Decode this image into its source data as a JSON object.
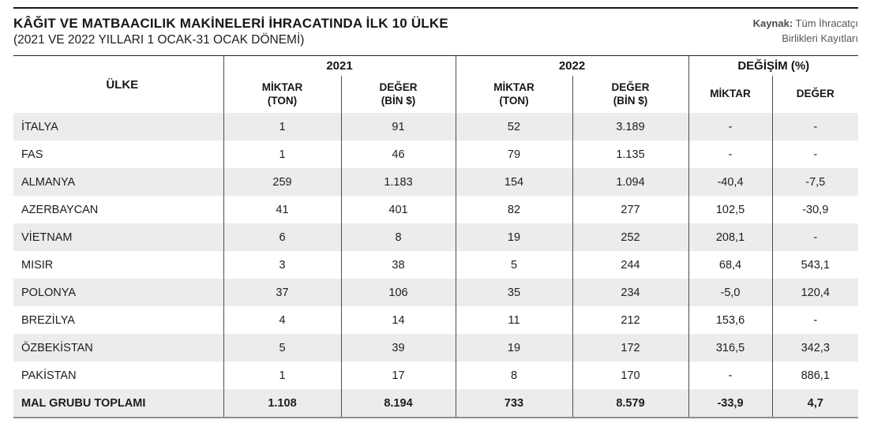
{
  "header": {
    "title": "KÂĞIT VE MATBAACILIK MAKİNELERİ İHRACATINDA İLK 10 ÜLKE",
    "subtitle": "(2021 VE 2022 YILLARI 1 OCAK-31 OCAK DÖNEMİ)",
    "source_label": "Kaynak:",
    "source_line1": " Tüm İhracatçı",
    "source_line2": "Birlikleri Kayıtları"
  },
  "table": {
    "country_header": "ÜLKE",
    "groups": {
      "g2021": "2021",
      "g2022": "2022",
      "gchange": "DEĞİŞİM (%)"
    },
    "sub": {
      "miktar": "MİKTAR",
      "ton": "(TON)",
      "deger": "DEĞER",
      "bin": "(BİN $)",
      "change_miktar": "MİKTAR",
      "change_deger": "DEĞER"
    }
  },
  "colors": {
    "stripe": "#ececec",
    "text": "#1d1d1b",
    "top_rule": "#1a1a1a",
    "cell_border": "#4c4c4c",
    "bottom_rule": "#8f8f8f",
    "source_text": "#55565a"
  },
  "chart_data": {
    "type": "table",
    "title": "KÂĞIT VE MATBAACILIK MAKİNELERİ İHRACATINDA İLK 10 ÜLKE",
    "subtitle": "(2021 VE 2022 YILLARI 1 OCAK-31 OCAK DÖNEMİ)",
    "source": "Kaynak: Tüm İhracatçı Birlikleri Kayıtları",
    "columns": [
      "ÜLKE",
      "2021 MİKTAR (TON)",
      "2021 DEĞER (BİN $)",
      "2022 MİKTAR (TON)",
      "2022 DEĞER (BİN $)",
      "DEĞİŞİM (%) MİKTAR",
      "DEĞİŞİM (%) DEĞER"
    ],
    "rows": [
      [
        "İTALYA",
        "1",
        "91",
        "52",
        "3.189",
        "-",
        "-"
      ],
      [
        "FAS",
        "1",
        "46",
        "79",
        "1.135",
        "-",
        "-"
      ],
      [
        "ALMANYA",
        "259",
        "1.183",
        "154",
        "1.094",
        "-40,4",
        "-7,5"
      ],
      [
        "AZERBAYCAN",
        "41",
        "401",
        "82",
        "277",
        "102,5",
        "-30,9"
      ],
      [
        "VİETNAM",
        "6",
        "8",
        "19",
        "252",
        "208,1",
        "-"
      ],
      [
        "MISIR",
        "3",
        "38",
        "5",
        "244",
        "68,4",
        "543,1"
      ],
      [
        "POLONYA",
        "37",
        "106",
        "35",
        "234",
        "-5,0",
        "120,4"
      ],
      [
        "BREZİLYA",
        "4",
        "14",
        "11",
        "212",
        "153,6",
        "-"
      ],
      [
        "ÖZBEKİSTAN",
        "5",
        "39",
        "19",
        "172",
        "316,5",
        "342,3"
      ],
      [
        "PAKİSTAN",
        "1",
        "17",
        "8",
        "170",
        "-",
        "886,1"
      ],
      [
        "MAL GRUBU TOPLAMI",
        "1.108",
        "8.194",
        "733",
        "8.579",
        "-33,9",
        "4,7"
      ]
    ]
  }
}
